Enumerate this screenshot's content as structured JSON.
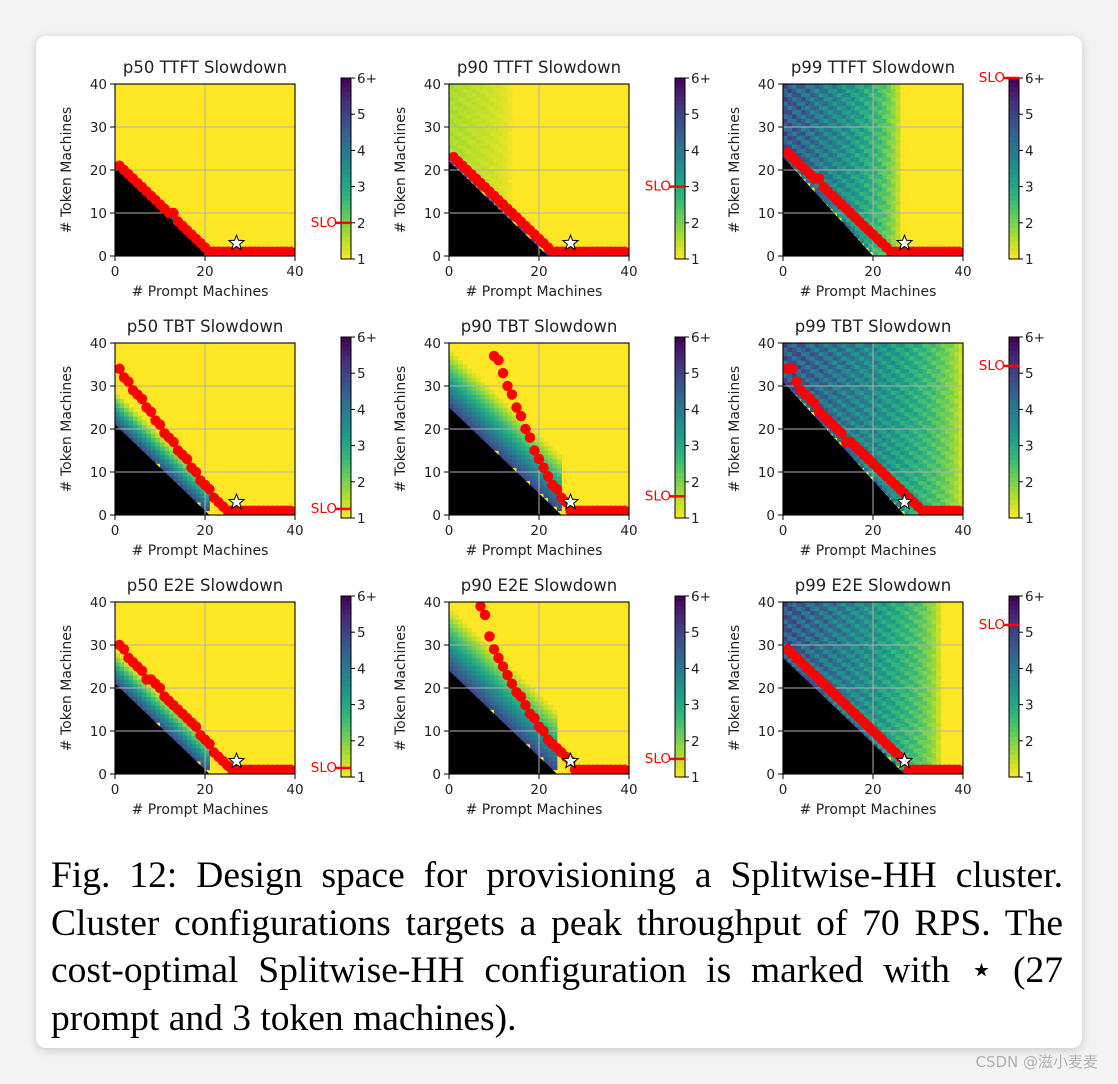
{
  "chart_data": [
    {
      "title": "p50 TTFT Slowdown",
      "type": "heatmap",
      "xlabel": "# Prompt Machines",
      "ylabel": "# Token Machines",
      "xlim": [
        0,
        40
      ],
      "ylim": [
        0,
        40
      ],
      "xticks": [
        "0",
        "20",
        "40"
      ],
      "yticks": [
        "0",
        "10",
        "20",
        "30",
        "40"
      ],
      "grid": true,
      "colorbar": {
        "ticks": [
          "1",
          "2",
          "3",
          "4",
          "5",
          "6+"
        ],
        "range": [
          1,
          6
        ],
        "slo_label": "SLO",
        "slo_value": 2.0
      },
      "black_line": [
        [
          0,
          21
        ],
        [
          21,
          0
        ]
      ],
      "heat": {
        "band": 0.5,
        "tint": 0.0,
        "tint_limit": 0
      },
      "frontier": {
        "x": [
          1,
          2,
          3,
          4,
          5,
          6,
          7,
          8,
          9,
          10,
          11,
          12,
          13,
          14,
          15,
          16,
          17,
          18,
          19,
          20,
          21,
          22,
          23,
          24,
          25,
          26,
          27,
          28,
          29,
          30,
          31,
          32,
          33,
          34,
          35,
          36,
          37,
          38,
          39
        ],
        "y": [
          21,
          20,
          19,
          18,
          17,
          16,
          15,
          14,
          13,
          12,
          11,
          10,
          10,
          8,
          7,
          6,
          5,
          4,
          3,
          2,
          1,
          1,
          1,
          1,
          1,
          1,
          1,
          1,
          1,
          1,
          1,
          1,
          1,
          1,
          1,
          1,
          1,
          1,
          1
        ]
      },
      "optimal": {
        "prompt": 27,
        "token": 3
      }
    },
    {
      "title": "p90 TTFT Slowdown",
      "type": "heatmap",
      "xlabel": "# Prompt Machines",
      "ylabel": "# Token Machines",
      "xlim": [
        0,
        40
      ],
      "ylim": [
        0,
        40
      ],
      "xticks": [
        "0",
        "20",
        "40"
      ],
      "yticks": [
        "0",
        "10",
        "20",
        "30",
        "40"
      ],
      "grid": true,
      "colorbar": {
        "ticks": [
          "1",
          "2",
          "3",
          "4",
          "5",
          "6+"
        ],
        "range": [
          1,
          6
        ],
        "slo_label": "SLO",
        "slo_value": 3.0
      },
      "black_line": [
        [
          0,
          22
        ],
        [
          22,
          0
        ]
      ],
      "heat": {
        "band": 0.5,
        "tint": 0.15,
        "tint_limit": 14
      },
      "frontier": {
        "x": [
          1,
          2,
          3,
          4,
          5,
          6,
          7,
          8,
          9,
          10,
          11,
          12,
          13,
          14,
          15,
          16,
          17,
          18,
          19,
          20,
          21,
          22,
          23,
          24,
          25,
          26,
          27,
          28,
          29,
          30,
          31,
          32,
          33,
          34,
          35,
          36,
          37,
          38,
          39
        ],
        "y": [
          23,
          22,
          21,
          20,
          19,
          18,
          17,
          16,
          15,
          14,
          13,
          12,
          11,
          10,
          9,
          8,
          7,
          6,
          5,
          4,
          3,
          2,
          1,
          1,
          1,
          1,
          1,
          1,
          1,
          1,
          1,
          1,
          1,
          1,
          1,
          1,
          1,
          1,
          1
        ]
      },
      "optimal": {
        "prompt": 27,
        "token": 3
      }
    },
    {
      "title": "p99 TTFT Slowdown",
      "type": "heatmap",
      "xlabel": "# Prompt Machines",
      "ylabel": "# Token Machines",
      "xlim": [
        0,
        40
      ],
      "ylim": [
        0,
        40
      ],
      "xticks": [
        "0",
        "20",
        "40"
      ],
      "yticks": [
        "0",
        "10",
        "20",
        "30",
        "40"
      ],
      "grid": true,
      "colorbar": {
        "ticks": [
          "1",
          "2",
          "3",
          "4",
          "5",
          "6+"
        ],
        "range": [
          1,
          6
        ],
        "slo_label": "SLO",
        "slo_value": 6.0
      },
      "black_line": [
        [
          0,
          23
        ],
        [
          20,
          0
        ]
      ],
      "heat": {
        "band": 2.0,
        "tint": 0.85,
        "tint_limit": 26
      },
      "frontier": {
        "x": [
          1,
          2,
          3,
          4,
          5,
          6,
          7,
          8,
          9,
          10,
          11,
          12,
          13,
          14,
          15,
          16,
          17,
          18,
          19,
          20,
          21,
          22,
          23,
          24,
          25,
          26,
          27,
          28,
          29,
          30,
          31,
          32,
          33,
          34,
          35,
          36,
          37,
          38,
          39
        ],
        "y": [
          24,
          23,
          22,
          21,
          20,
          19,
          18,
          18,
          16,
          15,
          14,
          13,
          12,
          11,
          10,
          9,
          8,
          7,
          6,
          5,
          4,
          3,
          2,
          1,
          1,
          1,
          1,
          1,
          1,
          1,
          1,
          1,
          1,
          1,
          1,
          1,
          1,
          1,
          1
        ]
      },
      "optimal": {
        "prompt": 27,
        "token": 3
      }
    },
    {
      "title": "p50 TBT Slowdown",
      "type": "heatmap",
      "xlabel": "# Prompt Machines",
      "ylabel": "# Token Machines",
      "xlim": [
        0,
        40
      ],
      "ylim": [
        0,
        40
      ],
      "xticks": [
        "0",
        "20",
        "40"
      ],
      "yticks": [
        "0",
        "10",
        "20",
        "30",
        "40"
      ],
      "grid": true,
      "colorbar": {
        "ticks": [
          "1",
          "2",
          "3",
          "4",
          "5",
          "6+"
        ],
        "range": [
          1,
          6
        ],
        "slo_label": "SLO",
        "slo_value": 1.25
      },
      "black_line": [
        [
          0,
          21
        ],
        [
          21,
          0
        ]
      ],
      "heat": {
        "band": 8.0,
        "tint": 0.0,
        "tint_limit": 0
      },
      "frontier": {
        "x": [
          1,
          2,
          3,
          4,
          5,
          6,
          7,
          8,
          9,
          10,
          11,
          12,
          13,
          14,
          15,
          16,
          17,
          18,
          19,
          20,
          21,
          22,
          23,
          24,
          25,
          26,
          27,
          28,
          29,
          30,
          31,
          32,
          33,
          34,
          35,
          36,
          37,
          38,
          39
        ],
        "y": [
          34,
          32,
          31,
          29,
          28,
          27,
          25,
          24,
          22,
          21,
          19,
          18,
          17,
          15,
          14,
          13,
          11,
          10,
          8,
          7,
          6,
          4,
          3,
          2,
          1,
          1,
          1,
          1,
          1,
          1,
          1,
          1,
          1,
          1,
          1,
          1,
          1,
          1,
          1
        ]
      },
      "optimal": {
        "prompt": 27,
        "token": 3
      }
    },
    {
      "title": "p90 TBT Slowdown",
      "type": "heatmap",
      "xlabel": "# Prompt Machines",
      "ylabel": "# Token Machines",
      "xlim": [
        0,
        40
      ],
      "ylim": [
        0,
        40
      ],
      "xticks": [
        "0",
        "20",
        "40"
      ],
      "yticks": [
        "0",
        "10",
        "20",
        "30",
        "40"
      ],
      "grid": true,
      "colorbar": {
        "ticks": [
          "1",
          "2",
          "3",
          "4",
          "5",
          "6+"
        ],
        "range": [
          1,
          6
        ],
        "slo_label": "SLO",
        "slo_value": 1.6
      },
      "black_line": [
        [
          0,
          25
        ],
        [
          25,
          0
        ]
      ],
      "heat": {
        "band": 14.0,
        "tint": 0.0,
        "tint_limit": 0
      },
      "frontier": {
        "x": [
          10,
          11,
          12,
          13,
          14,
          15,
          16,
          17,
          18,
          19,
          20,
          21,
          22,
          23,
          24,
          25,
          26,
          27,
          28,
          29,
          30,
          31,
          32,
          33,
          34,
          35,
          36,
          37,
          38,
          39
        ],
        "y": [
          37,
          36,
          33,
          30,
          28,
          25,
          23,
          20,
          18,
          15,
          13,
          11,
          9,
          7,
          6,
          4,
          3,
          1,
          1,
          1,
          1,
          1,
          1,
          1,
          1,
          1,
          1,
          1,
          1,
          1
        ]
      },
      "optimal": {
        "prompt": 27,
        "token": 3
      }
    },
    {
      "title": "p99 TBT Slowdown",
      "type": "heatmap",
      "xlabel": "# Prompt Machines",
      "ylabel": "# Token Machines",
      "xlim": [
        0,
        40
      ],
      "ylim": [
        0,
        40
      ],
      "xticks": [
        "0",
        "20",
        "40"
      ],
      "yticks": [
        "0",
        "10",
        "20",
        "30",
        "40"
      ],
      "grid": true,
      "colorbar": {
        "ticks": [
          "1",
          "2",
          "3",
          "4",
          "5",
          "6+"
        ],
        "range": [
          1,
          6
        ],
        "slo_label": "SLO",
        "slo_value": 5.2
      },
      "black_line": [
        [
          0,
          31
        ],
        [
          27,
          0
        ]
      ],
      "heat": {
        "band": 3.0,
        "tint": 0.85,
        "tint_limit": 40
      },
      "frontier": {
        "x": [
          1,
          2,
          3,
          4,
          5,
          6,
          7,
          8,
          9,
          10,
          11,
          12,
          13,
          14,
          15,
          16,
          17,
          18,
          19,
          20,
          21,
          22,
          23,
          24,
          25,
          26,
          27,
          28,
          29,
          30,
          31,
          32,
          33,
          34,
          35,
          36,
          37,
          38,
          39
        ],
        "y": [
          34,
          34,
          31,
          29,
          28,
          27,
          26,
          24,
          23,
          22,
          21,
          20,
          19,
          17,
          17,
          16,
          15,
          14,
          13,
          12,
          11,
          10,
          9,
          8,
          7,
          6,
          5,
          4,
          3,
          2,
          1,
          1,
          1,
          1,
          1,
          1,
          1,
          1,
          1
        ]
      },
      "optimal": {
        "prompt": 27,
        "token": 3
      }
    },
    {
      "title": "p50 E2E Slowdown",
      "type": "heatmap",
      "xlabel": "# Prompt Machines",
      "ylabel": "# Token Machines",
      "xlim": [
        0,
        40
      ],
      "ylim": [
        0,
        40
      ],
      "xticks": [
        "0",
        "20",
        "40"
      ],
      "yticks": [
        "0",
        "10",
        "20",
        "30",
        "40"
      ],
      "grid": true,
      "colorbar": {
        "ticks": [
          "1",
          "2",
          "3",
          "4",
          "5",
          "6+"
        ],
        "range": [
          1,
          6
        ],
        "slo_label": "SLO",
        "slo_value": 1.25
      },
      "black_line": [
        [
          0,
          21
        ],
        [
          21,
          0
        ]
      ],
      "heat": {
        "band": 8.0,
        "tint": 0.0,
        "tint_limit": 0
      },
      "frontier": {
        "x": [
          1,
          2,
          3,
          4,
          5,
          6,
          7,
          8,
          9,
          10,
          11,
          12,
          13,
          14,
          15,
          16,
          17,
          18,
          19,
          20,
          21,
          22,
          23,
          24,
          25,
          26,
          27,
          28,
          29,
          30,
          31,
          32,
          33,
          34,
          35,
          36,
          37,
          38,
          39
        ],
        "y": [
          30,
          29,
          27,
          26,
          25,
          24,
          22,
          22,
          21,
          20,
          18,
          17,
          16,
          15,
          14,
          13,
          12,
          11,
          9,
          8,
          7,
          5,
          4,
          3,
          2,
          1,
          1,
          1,
          1,
          1,
          1,
          1,
          1,
          1,
          1,
          1,
          1,
          1,
          1
        ]
      },
      "optimal": {
        "prompt": 27,
        "token": 3
      }
    },
    {
      "title": "p90 E2E Slowdown",
      "type": "heatmap",
      "xlabel": "# Prompt Machines",
      "ylabel": "# Token Machines",
      "xlim": [
        0,
        40
      ],
      "ylim": [
        0,
        40
      ],
      "xticks": [
        "0",
        "20",
        "40"
      ],
      "yticks": [
        "0",
        "10",
        "20",
        "30",
        "40"
      ],
      "grid": true,
      "colorbar": {
        "ticks": [
          "1",
          "2",
          "3",
          "4",
          "5",
          "6+"
        ],
        "range": [
          1,
          6
        ],
        "slo_label": "SLO",
        "slo_value": 1.5
      },
      "black_line": [
        [
          0,
          24
        ],
        [
          24,
          0
        ]
      ],
      "heat": {
        "band": 15.0,
        "tint": 0.0,
        "tint_limit": 0
      },
      "frontier": {
        "x": [
          7,
          8,
          9,
          10,
          11,
          12,
          13,
          14,
          15,
          16,
          17,
          18,
          19,
          20,
          21,
          22,
          23,
          24,
          25,
          26,
          27,
          28,
          29,
          30,
          31,
          32,
          33,
          34,
          35,
          36,
          37,
          38,
          39
        ],
        "y": [
          39,
          37,
          32,
          29,
          27,
          25,
          23,
          21,
          19,
          18,
          16,
          14,
          13,
          11,
          10,
          8,
          7,
          6,
          5,
          4,
          3,
          1,
          1,
          1,
          1,
          1,
          1,
          1,
          1,
          1,
          1,
          1,
          1
        ]
      },
      "optimal": {
        "prompt": 27,
        "token": 3
      }
    },
    {
      "title": "p99 E2E Slowdown",
      "type": "heatmap",
      "xlabel": "# Prompt Machines",
      "ylabel": "# Token Machines",
      "xlim": [
        0,
        40
      ],
      "ylim": [
        0,
        40
      ],
      "xticks": [
        "0",
        "20",
        "40"
      ],
      "yticks": [
        "0",
        "10",
        "20",
        "30",
        "40"
      ],
      "grid": true,
      "colorbar": {
        "ticks": [
          "1",
          "2",
          "3",
          "4",
          "5",
          "6+"
        ],
        "range": [
          1,
          6
        ],
        "slo_label": "SLO",
        "slo_value": 5.2
      },
      "black_line": [
        [
          0,
          27
        ],
        [
          27,
          0
        ]
      ],
      "heat": {
        "band": 2.0,
        "tint": 0.85,
        "tint_limit": 35
      },
      "frontier": {
        "x": [
          1,
          2,
          3,
          4,
          5,
          6,
          7,
          8,
          9,
          10,
          11,
          12,
          13,
          14,
          15,
          16,
          17,
          18,
          19,
          20,
          21,
          22,
          23,
          24,
          25,
          26,
          27,
          28,
          29,
          30,
          31,
          32,
          33,
          34,
          35,
          36,
          37,
          38,
          39
        ],
        "y": [
          29,
          28,
          27,
          26,
          25,
          24,
          23,
          22,
          21,
          20,
          19,
          18,
          17,
          16,
          15,
          14,
          13,
          12,
          11,
          10,
          9,
          8,
          7,
          6,
          5,
          4,
          3,
          1,
          1,
          1,
          1,
          1,
          1,
          1,
          1,
          1,
          1,
          1,
          1
        ]
      },
      "optimal": {
        "prompt": 27,
        "token": 3
      }
    }
  ],
  "caption": "Fig. 12: Design space for provisioning a Splitwise-HH cluster. Cluster configurations targets a peak throughput of 70 RPS. The cost-optimal Splitwise-HH configuration is marked with ⋆ (27 prompt and 3 token machines).",
  "watermark": "CSDN @滋小麦麦",
  "colors": {
    "frontier": "#ff0000",
    "slo": "#ff0000",
    "background": "#fde725",
    "black": "#000000"
  }
}
